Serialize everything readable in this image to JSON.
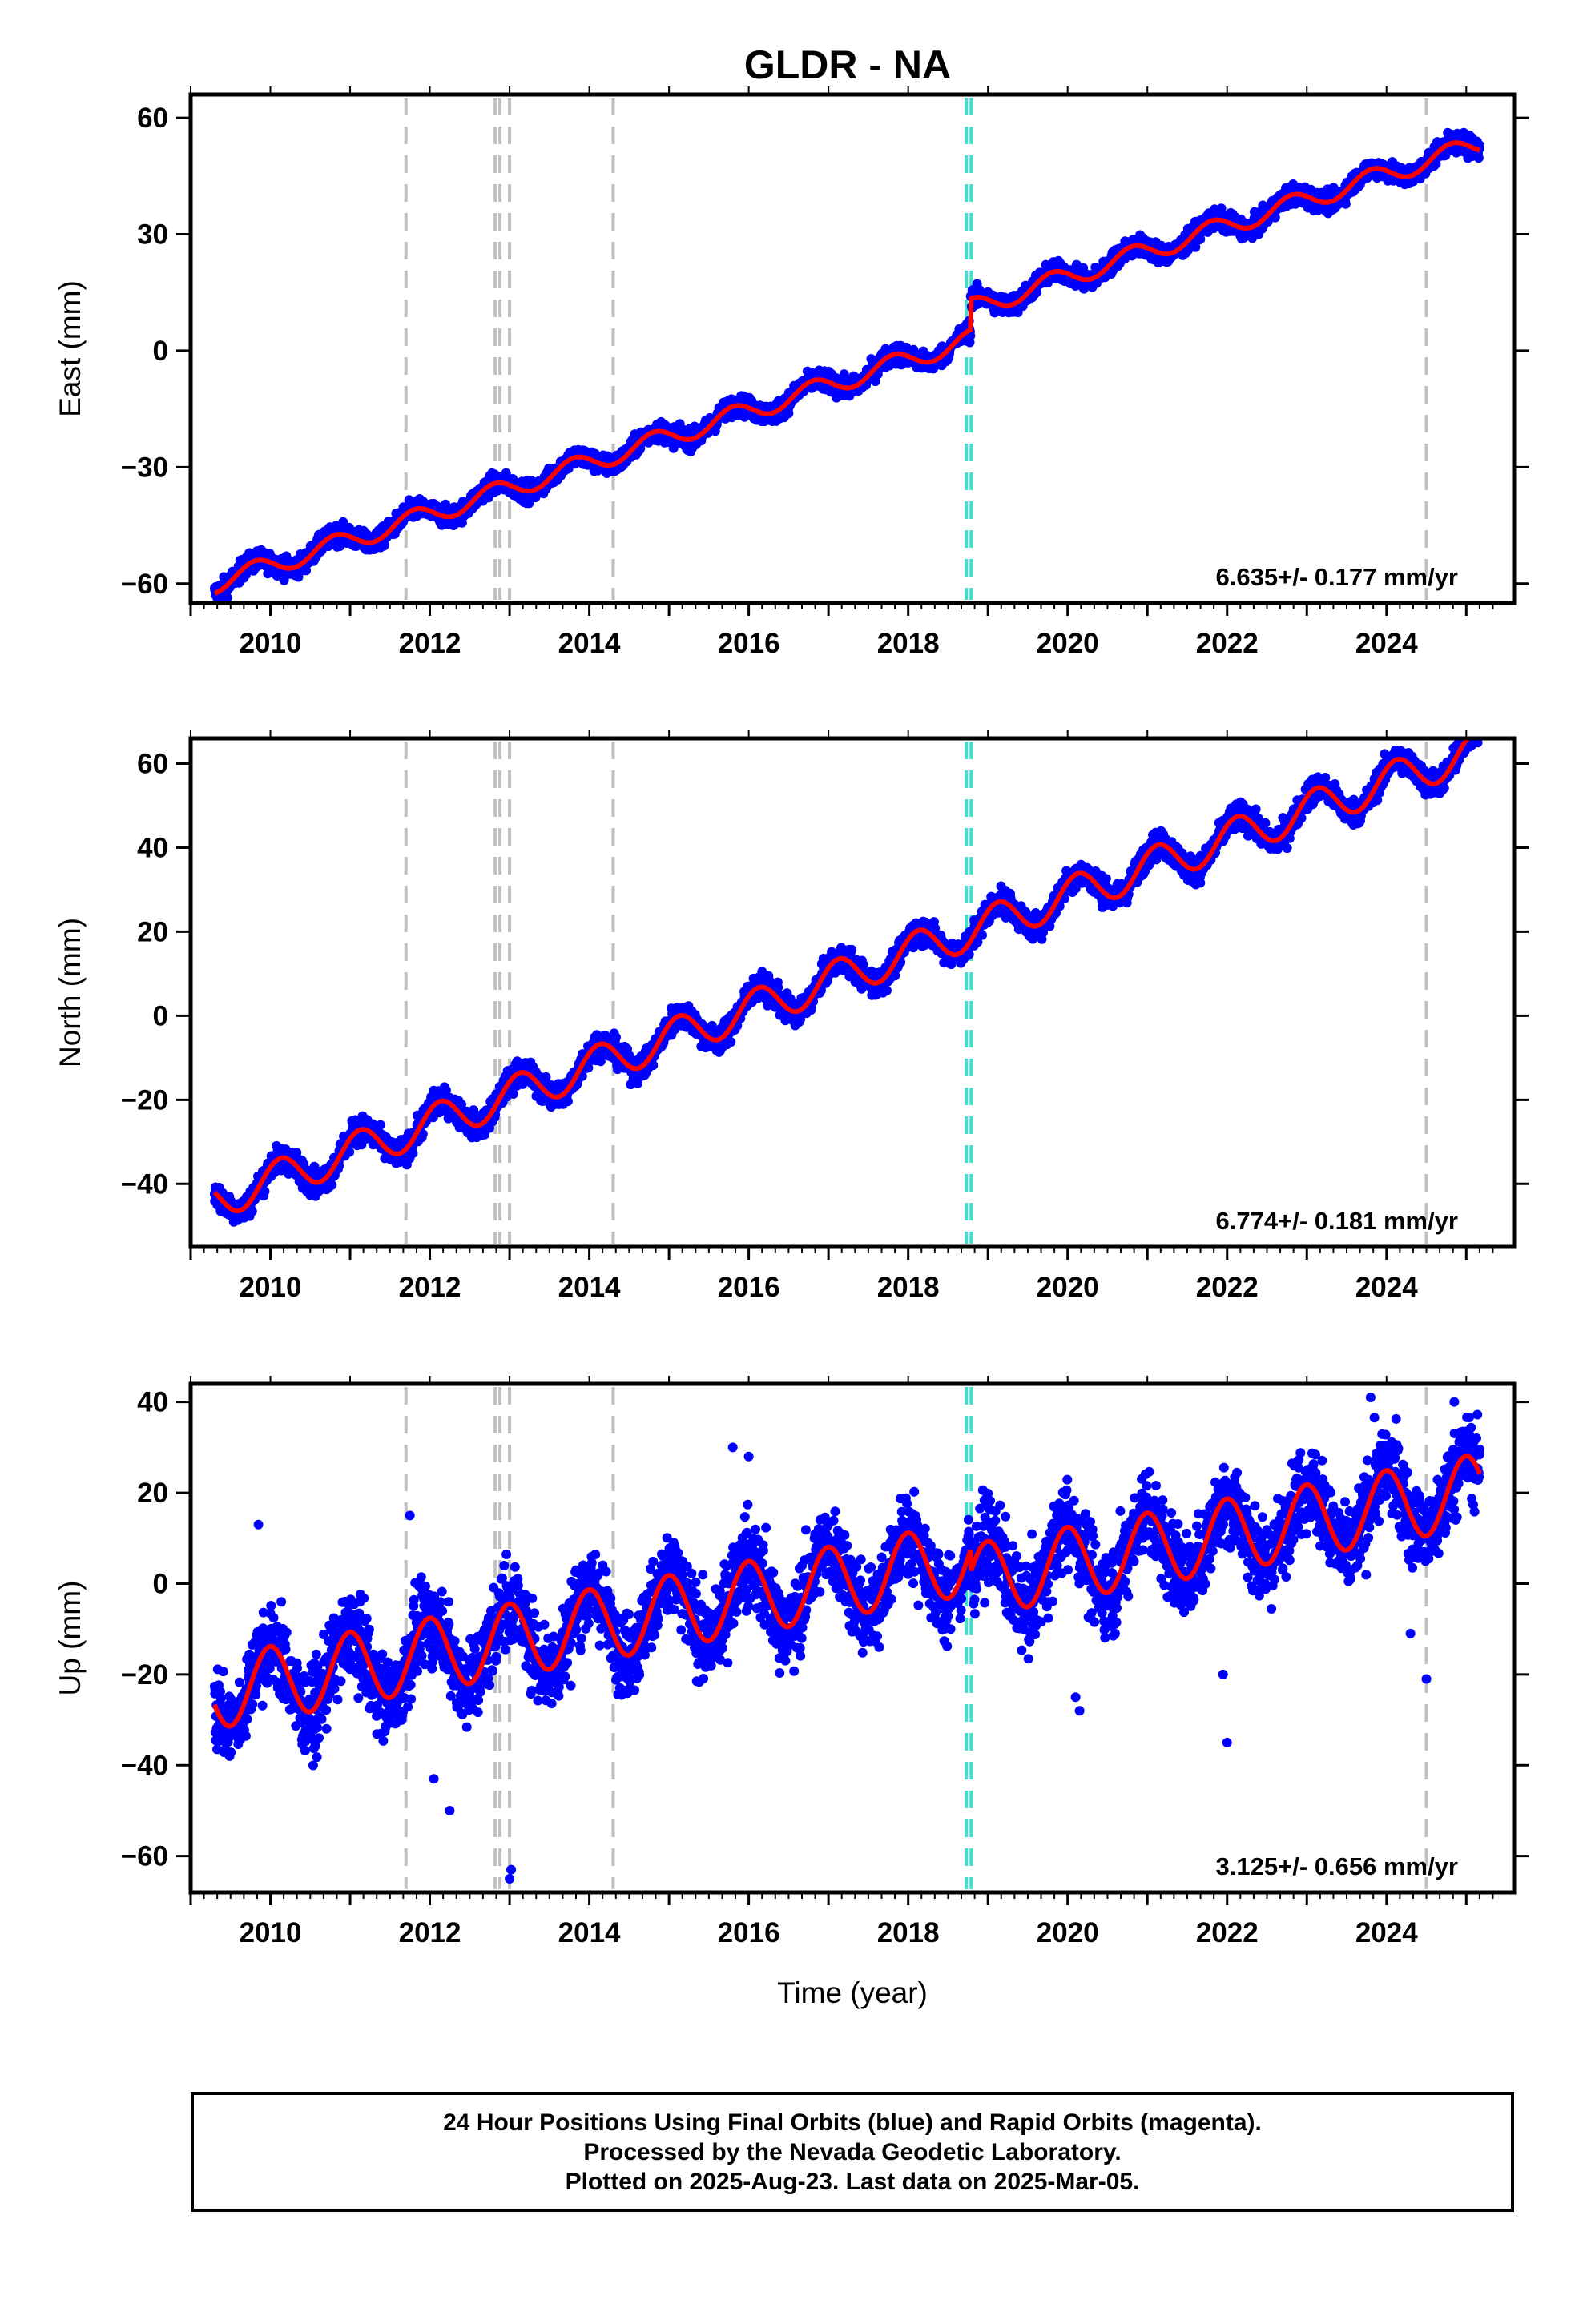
{
  "title": "GLDR - NA",
  "footer": {
    "line1": "24 Hour Positions Using Final Orbits (blue) and Rapid Orbits (magenta).",
    "line2": "Processed by the Nevada Geodetic Laboratory.",
    "line3": "Plotted on 2025-Aug-23. Last data on 2025-Mar-05."
  },
  "colors": {
    "final_orbits": "#0000ff",
    "model_fit": "#ff0000",
    "equipment_change_line": "#c0c0c0",
    "earthquake_line": "#40e0d0"
  },
  "chart_data": [
    {
      "type": "scatter",
      "component": "East",
      "ylabel": "East (mm)",
      "xlabel": "",
      "xlim": [
        2009.0,
        2025.6
      ],
      "ylim": [
        -65,
        66
      ],
      "yticks": [
        -60,
        -30,
        0,
        30,
        60
      ],
      "xticks": [
        2010,
        2012,
        2014,
        2016,
        2018,
        2020,
        2022,
        2024
      ],
      "rate_text": "6.635+/- 0.177 mm/yr",
      "model": {
        "t0": 2009.3,
        "intercept": -60.0,
        "rate": 6.635,
        "annual_amp": 2.5,
        "annual_phase": 2.8,
        "offset_2018_78": 8.0
      },
      "scatter": 1.8,
      "dashed_lines_gray": [
        2011.7,
        2012.82,
        2012.88,
        2013.0,
        2014.3,
        2024.5
      ],
      "dashed_lines_cyan": [
        2018.73,
        2018.79
      ]
    },
    {
      "type": "scatter",
      "component": "North",
      "ylabel": "North (mm)",
      "xlabel": "",
      "xlim": [
        2009.0,
        2025.6
      ],
      "ylim": [
        -55,
        66
      ],
      "yticks": [
        -40,
        -20,
        0,
        20,
        40,
        60
      ],
      "xticks": [
        2010,
        2012,
        2014,
        2016,
        2018,
        2020,
        2022,
        2024
      ],
      "rate_text": "6.774+/- 0.181 mm/yr",
      "model": {
        "t0": 2009.3,
        "intercept": -44.0,
        "rate": 6.774,
        "annual_amp": 4.5,
        "annual_phase": 0.8,
        "offset_2018_78": 0.0
      },
      "scatter": 2.2,
      "dashed_lines_gray": [
        2011.7,
        2012.82,
        2012.88,
        2013.0,
        2014.3,
        2024.5
      ],
      "dashed_lines_cyan": [
        2018.73,
        2018.79
      ]
    },
    {
      "type": "scatter",
      "component": "Up",
      "ylabel": "Up (mm)",
      "xlabel": "Time (year)",
      "xlim": [
        2009.0,
        2025.6
      ],
      "ylim": [
        -68,
        44
      ],
      "yticks": [
        -60,
        -40,
        -20,
        0,
        20,
        40
      ],
      "xticks": [
        2010,
        2012,
        2014,
        2016,
        2018,
        2020,
        2022,
        2024
      ],
      "rate_text": "3.125+/- 0.656 mm/yr",
      "model": {
        "t0": 2009.3,
        "intercept": -24.0,
        "rate": 3.125,
        "annual_amp": 8.0,
        "annual_phase": 1.6,
        "offset_2018_78": -5.0
      },
      "scatter": 6.5,
      "dashed_lines_gray": [
        2011.7,
        2012.82,
        2012.88,
        2013.0,
        2014.3,
        2024.5
      ],
      "dashed_lines_cyan": [
        2018.73,
        2018.79
      ]
    }
  ]
}
